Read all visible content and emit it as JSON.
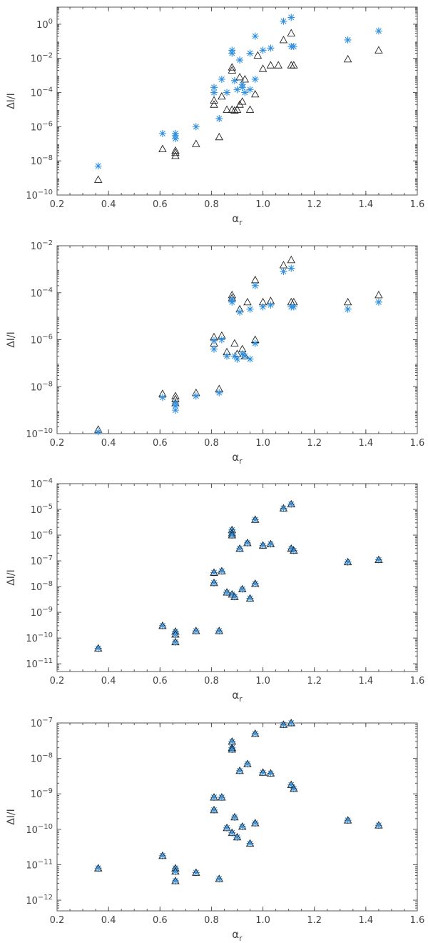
{
  "colors": {
    "triangle": "#222222",
    "star": "#2f8fe0",
    "axis": "#555555"
  },
  "chart_data": [
    {
      "type": "scatter",
      "xlabel": "α_r",
      "ylabel": "ΔI/I",
      "xlim": [
        0.2,
        1.6
      ],
      "ylim": [
        1e-10,
        10
      ],
      "yscale": "log",
      "xticks": [
        "0.2",
        "0.4",
        "0.6",
        "0.8",
        "1.0",
        "1.2",
        "1.4",
        "1.6"
      ],
      "yticks": [
        {
          "v": 1e-10,
          "label": "10^-10"
        },
        {
          "v": 1e-08,
          "label": "10^-8"
        },
        {
          "v": 1e-06,
          "label": "10^-6"
        },
        {
          "v": 0.0001,
          "label": "10^-4"
        },
        {
          "v": 0.01,
          "label": "10^-2"
        },
        {
          "v": 1,
          "label": "10^0"
        }
      ],
      "series": [
        {
          "marker": "triangle",
          "points": [
            [
              0.36,
              8e-10
            ],
            [
              0.61,
              5e-08
            ],
            [
              0.66,
              4e-08
            ],
            [
              0.66,
              3e-08
            ],
            [
              0.66,
              2e-08
            ],
            [
              0.74,
              1e-07
            ],
            [
              0.83,
              2.5e-07
            ],
            [
              0.81,
              2e-05
            ],
            [
              0.81,
              3.5e-05
            ],
            [
              0.84,
              6e-05
            ],
            [
              0.86,
              1e-05
            ],
            [
              0.88,
              1e-05
            ],
            [
              0.88,
              0.002
            ],
            [
              0.88,
              0.003
            ],
            [
              0.89,
              9e-06
            ],
            [
              0.9,
              1e-05
            ],
            [
              0.91,
              2e-05
            ],
            [
              0.91,
              0.0008
            ],
            [
              0.92,
              3e-05
            ],
            [
              0.93,
              0.0006
            ],
            [
              0.95,
              1e-05
            ],
            [
              0.97,
              8e-05
            ],
            [
              0.98,
              0.015
            ],
            [
              1.0,
              0.0025
            ],
            [
              1.03,
              0.004
            ],
            [
              1.06,
              0.004
            ],
            [
              1.08,
              0.12
            ],
            [
              1.11,
              0.3
            ],
            [
              1.11,
              0.004
            ],
            [
              1.12,
              0.004
            ],
            [
              1.33,
              0.009
            ],
            [
              1.45,
              0.03
            ]
          ]
        },
        {
          "marker": "star",
          "points": [
            [
              0.36,
              5e-09
            ],
            [
              0.61,
              4e-07
            ],
            [
              0.66,
              4e-07
            ],
            [
              0.66,
              3e-07
            ],
            [
              0.66,
              2e-07
            ],
            [
              0.74,
              1e-06
            ],
            [
              0.83,
              3e-06
            ],
            [
              0.81,
              0.0002
            ],
            [
              0.81,
              0.0001
            ],
            [
              0.84,
              0.0006
            ],
            [
              0.86,
              0.0001
            ],
            [
              0.88,
              0.02
            ],
            [
              0.88,
              0.03
            ],
            [
              0.89,
              0.0005
            ],
            [
              0.9,
              0.00015
            ],
            [
              0.91,
              0.008
            ],
            [
              0.92,
              0.0002
            ],
            [
              0.92,
              0.0003
            ],
            [
              0.93,
              0.0001
            ],
            [
              0.95,
              0.00015
            ],
            [
              0.95,
              0.02
            ],
            [
              0.97,
              0.0006
            ],
            [
              0.97,
              0.2
            ],
            [
              1.0,
              0.03
            ],
            [
              1.03,
              0.04
            ],
            [
              1.08,
              1.5
            ],
            [
              1.11,
              2.5
            ],
            [
              1.11,
              0.05
            ],
            [
              1.12,
              0.05
            ],
            [
              1.33,
              0.12
            ],
            [
              1.45,
              0.4
            ]
          ]
        }
      ]
    },
    {
      "type": "scatter",
      "xlabel": "α_r",
      "ylabel": "ΔI/I",
      "xlim": [
        0.2,
        1.6
      ],
      "ylim": [
        1e-10,
        0.01
      ],
      "yscale": "log",
      "xticks": [
        "0.2",
        "0.4",
        "0.6",
        "0.8",
        "1.0",
        "1.2",
        "1.4",
        "1.6"
      ],
      "yticks": [
        {
          "v": 1e-10,
          "label": "10^-10"
        },
        {
          "v": 1e-08,
          "label": "10^-8"
        },
        {
          "v": 1e-06,
          "label": "10^-6"
        },
        {
          "v": 0.0001,
          "label": "10^-4"
        },
        {
          "v": 0.01,
          "label": "10^-2"
        }
      ],
      "series": [
        {
          "marker": "triangle",
          "points": [
            [
              0.36,
              1.5e-10
            ],
            [
              0.61,
              5e-09
            ],
            [
              0.66,
              4e-09
            ],
            [
              0.66,
              3e-09
            ],
            [
              0.66,
              2e-09
            ],
            [
              0.74,
              5.5e-09
            ],
            [
              0.83,
              8e-09
            ],
            [
              0.81,
              1.3e-06
            ],
            [
              0.81,
              7e-07
            ],
            [
              0.84,
              1.5e-06
            ],
            [
              0.86,
              3e-07
            ],
            [
              0.88,
              8e-05
            ],
            [
              0.88,
              6e-05
            ],
            [
              0.89,
              7e-07
            ],
            [
              0.9,
              2.5e-07
            ],
            [
              0.91,
              2e-05
            ],
            [
              0.92,
              4e-07
            ],
            [
              0.93,
              2e-07
            ],
            [
              0.94,
              4e-05
            ],
            [
              0.97,
              1e-06
            ],
            [
              0.97,
              0.00035
            ],
            [
              1.0,
              4e-05
            ],
            [
              1.03,
              4.5e-05
            ],
            [
              1.08,
              0.0015
            ],
            [
              1.11,
              0.0025
            ],
            [
              1.11,
              4e-05
            ],
            [
              1.12,
              4e-05
            ],
            [
              1.33,
              4e-05
            ],
            [
              1.45,
              8e-05
            ]
          ]
        },
        {
          "marker": "star",
          "points": [
            [
              0.36,
              1.2e-10
            ],
            [
              0.61,
              3.5e-09
            ],
            [
              0.66,
              2e-09
            ],
            [
              0.66,
              1.5e-09
            ],
            [
              0.66,
              1e-09
            ],
            [
              0.74,
              4e-09
            ],
            [
              0.83,
              5.5e-09
            ],
            [
              0.81,
              4e-07
            ],
            [
              0.81,
              9e-07
            ],
            [
              0.84,
              1e-06
            ],
            [
              0.86,
              2e-07
            ],
            [
              0.88,
              4e-05
            ],
            [
              0.88,
              5e-05
            ],
            [
              0.89,
              2e-07
            ],
            [
              0.9,
              1.5e-07
            ],
            [
              0.91,
              1.5e-05
            ],
            [
              0.92,
              2.5e-07
            ],
            [
              0.93,
              2e-07
            ],
            [
              0.95,
              2e-05
            ],
            [
              0.95,
              1.5e-07
            ],
            [
              0.97,
              7e-07
            ],
            [
              0.97,
              0.0002
            ],
            [
              1.0,
              2.5e-05
            ],
            [
              1.03,
              3e-05
            ],
            [
              1.08,
              0.0008
            ],
            [
              1.11,
              0.0011
            ],
            [
              1.11,
              2.5e-05
            ],
            [
              1.12,
              2.5e-05
            ],
            [
              1.33,
              2e-05
            ],
            [
              1.45,
              4e-05
            ]
          ]
        }
      ]
    },
    {
      "type": "scatter",
      "xlabel": "α_r",
      "ylabel": "ΔI/I",
      "xlim": [
        0.2,
        1.6
      ],
      "ylim": [
        5e-12,
        0.0001
      ],
      "yscale": "log",
      "xticks": [
        "0.2",
        "0.4",
        "0.6",
        "0.8",
        "1.0",
        "1.2",
        "1.4",
        "1.6"
      ],
      "yticks": [
        {
          "v": 1e-11,
          "label": "10^-11"
        },
        {
          "v": 1e-10,
          "label": "10^-10"
        },
        {
          "v": 1e-09,
          "label": "10^-9"
        },
        {
          "v": 1e-08,
          "label": "10^-8"
        },
        {
          "v": 1e-07,
          "label": "10^-7"
        },
        {
          "v": 1e-06,
          "label": "10^-6"
        },
        {
          "v": 1e-05,
          "label": "10^-5"
        },
        {
          "v": 0.0001,
          "label": "10^-4"
        }
      ],
      "series": [
        {
          "marker": "both",
          "points": [
            [
              0.36,
              4e-11
            ],
            [
              0.61,
              3e-10
            ],
            [
              0.66,
              1.8e-10
            ],
            [
              0.66,
              1.4e-10
            ],
            [
              0.66,
              7e-11
            ],
            [
              0.74,
              1.9e-10
            ],
            [
              0.83,
              1.9e-10
            ],
            [
              0.81,
              3.5e-08
            ],
            [
              0.81,
              1.4e-08
            ],
            [
              0.84,
              4e-08
            ],
            [
              0.86,
              6e-09
            ],
            [
              0.88,
              1.6e-06
            ],
            [
              0.88,
              1.2e-06
            ],
            [
              0.88,
              1e-06
            ],
            [
              0.88,
              5e-09
            ],
            [
              0.89,
              4e-09
            ],
            [
              0.91,
              3e-07
            ],
            [
              0.92,
              8e-09
            ],
            [
              0.94,
              5e-07
            ],
            [
              0.95,
              3.5e-09
            ],
            [
              0.97,
              1.3e-08
            ],
            [
              0.97,
              4e-06
            ],
            [
              1.0,
              4e-07
            ],
            [
              1.03,
              4.5e-07
            ],
            [
              1.08,
              1.1e-05
            ],
            [
              1.11,
              1.6e-05
            ],
            [
              1.11,
              3e-07
            ],
            [
              1.12,
              2.5e-07
            ],
            [
              1.33,
              9e-08
            ],
            [
              1.45,
              1.1e-07
            ]
          ]
        }
      ]
    },
    {
      "type": "scatter",
      "xlabel": "α_r",
      "ylabel": "ΔI/I",
      "xlim": [
        0.2,
        1.6
      ],
      "ylim": [
        5e-13,
        1e-07
      ],
      "yscale": "log",
      "xticks": [
        "0.2",
        "0.4",
        "0.6",
        "0.8",
        "1.0",
        "1.2",
        "1.4",
        "1.6"
      ],
      "yticks": [
        {
          "v": 1e-12,
          "label": "10^-12"
        },
        {
          "v": 1e-11,
          "label": "10^-11"
        },
        {
          "v": 1e-10,
          "label": "10^-10"
        },
        {
          "v": 1e-09,
          "label": "10^-9"
        },
        {
          "v": 1e-08,
          "label": "10^-8"
        },
        {
          "v": 1e-07,
          "label": "10^-7"
        }
      ],
      "series": [
        {
          "marker": "both",
          "points": [
            [
              0.36,
              8e-12
            ],
            [
              0.61,
              1.8e-11
            ],
            [
              0.66,
              8e-12
            ],
            [
              0.66,
              6.5e-12
            ],
            [
              0.66,
              3.5e-12
            ],
            [
              0.74,
              6e-12
            ],
            [
              0.83,
              4e-12
            ],
            [
              0.81,
              8e-10
            ],
            [
              0.81,
              3.5e-10
            ],
            [
              0.84,
              8e-10
            ],
            [
              0.86,
              1.1e-10
            ],
            [
              0.88,
              3e-08
            ],
            [
              0.88,
              2e-08
            ],
            [
              0.88,
              1.8e-08
            ],
            [
              0.88,
              8e-11
            ],
            [
              0.89,
              2.2e-10
            ],
            [
              0.9,
              6e-11
            ],
            [
              0.91,
              4.5e-09
            ],
            [
              0.92,
              1.2e-10
            ],
            [
              0.94,
              7e-09
            ],
            [
              0.95,
              4e-11
            ],
            [
              0.97,
              1.5e-10
            ],
            [
              0.97,
              5e-08
            ],
            [
              1.0,
              4e-09
            ],
            [
              1.03,
              3.8e-09
            ],
            [
              1.08,
              9e-08
            ],
            [
              1.11,
              1e-07
            ],
            [
              1.11,
              1.8e-09
            ],
            [
              1.12,
              1.4e-09
            ],
            [
              1.33,
              1.8e-10
            ],
            [
              1.45,
              1.3e-10
            ]
          ]
        }
      ]
    }
  ]
}
